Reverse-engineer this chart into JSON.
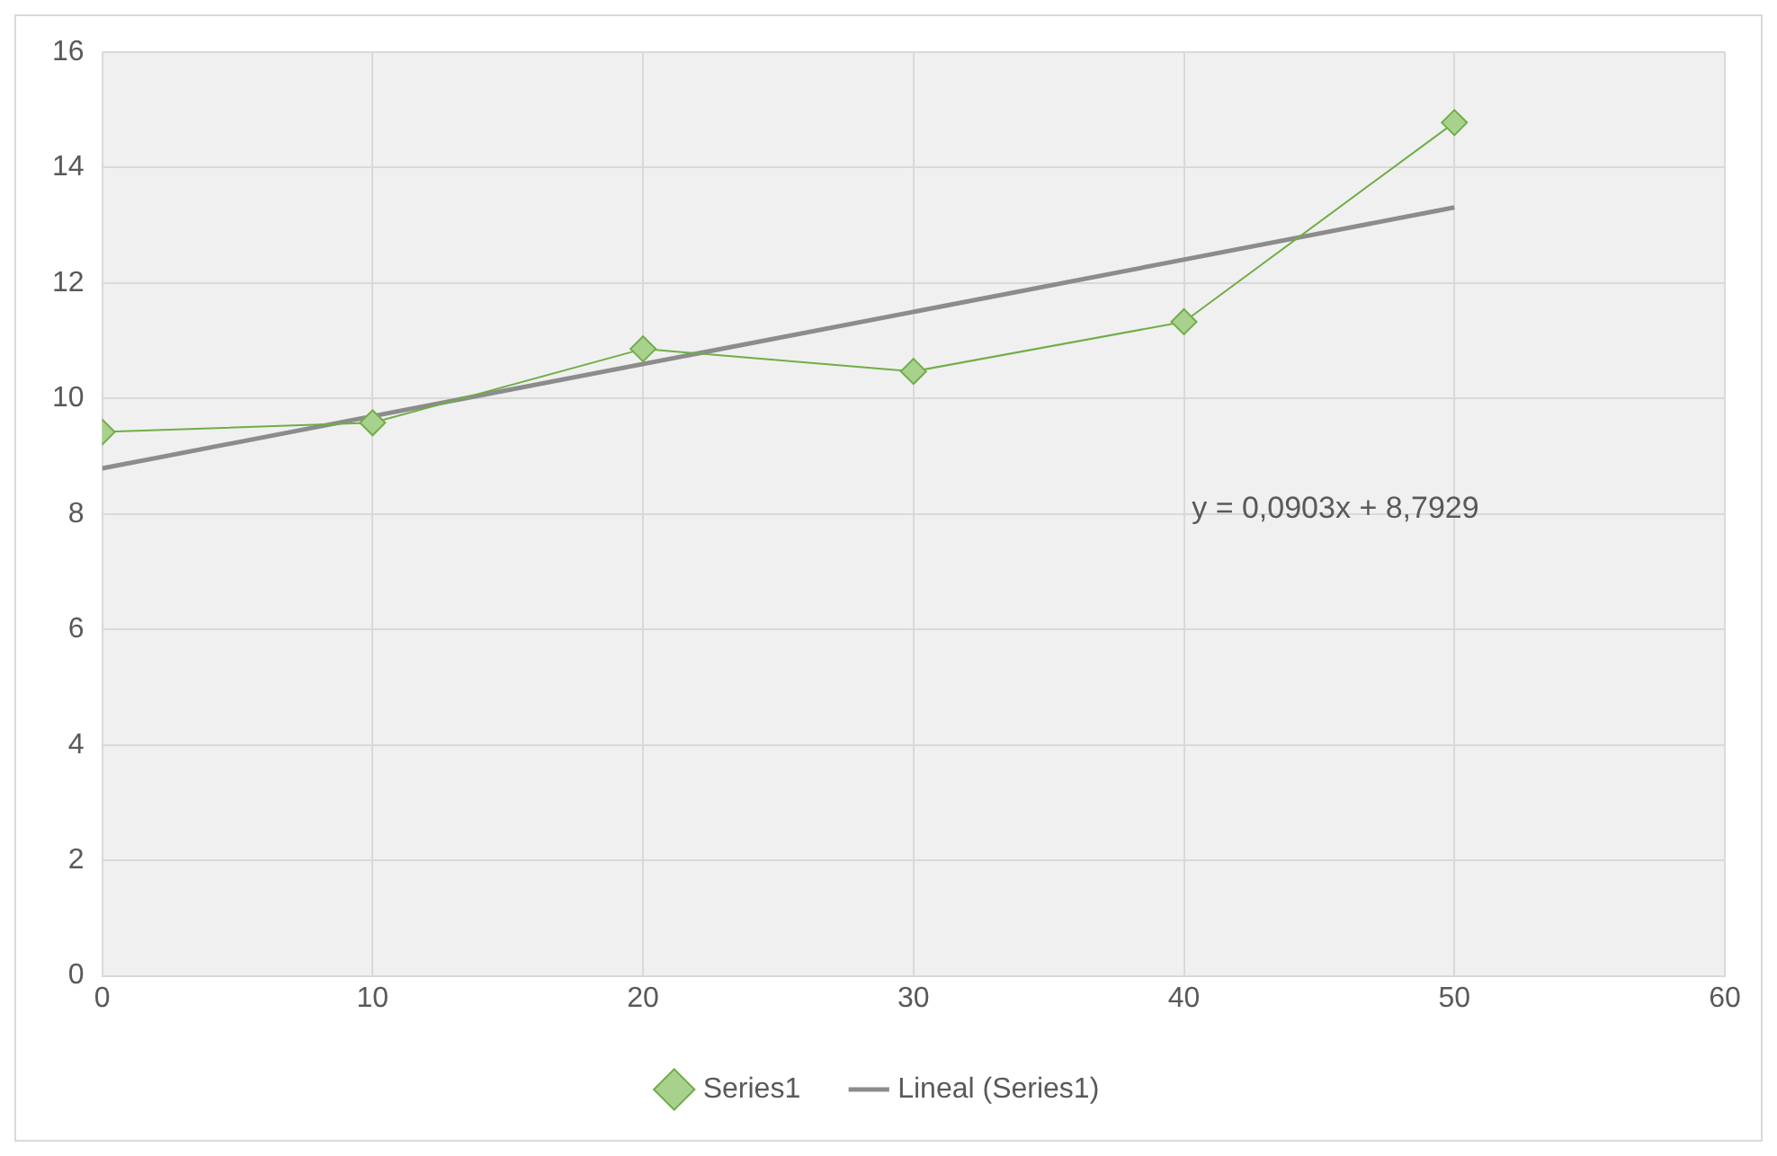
{
  "chart_data": {
    "type": "line",
    "xlim": [
      0,
      60
    ],
    "xticks": [
      0,
      10,
      20,
      30,
      40,
      50,
      60
    ],
    "ylim": [
      0,
      16
    ],
    "yticks": [
      0,
      2,
      4,
      6,
      8,
      10,
      12,
      14,
      16
    ],
    "grid": true,
    "legend": "bottom",
    "series": [
      {
        "name": "Series1",
        "marker": "diamond",
        "color": "#70ad47",
        "x": [
          0,
          10,
          20,
          30,
          40,
          50
        ],
        "values": [
          9.42,
          9.58,
          10.86,
          10.47,
          11.33,
          14.78
        ]
      },
      {
        "name": "Lineal (Series1)",
        "marker": "none",
        "color": "#8c8c8c",
        "x": [
          0,
          50
        ],
        "values": [
          8.79,
          13.31
        ]
      }
    ],
    "annotations": [
      "y = 0,0903x + 8,7929"
    ]
  }
}
